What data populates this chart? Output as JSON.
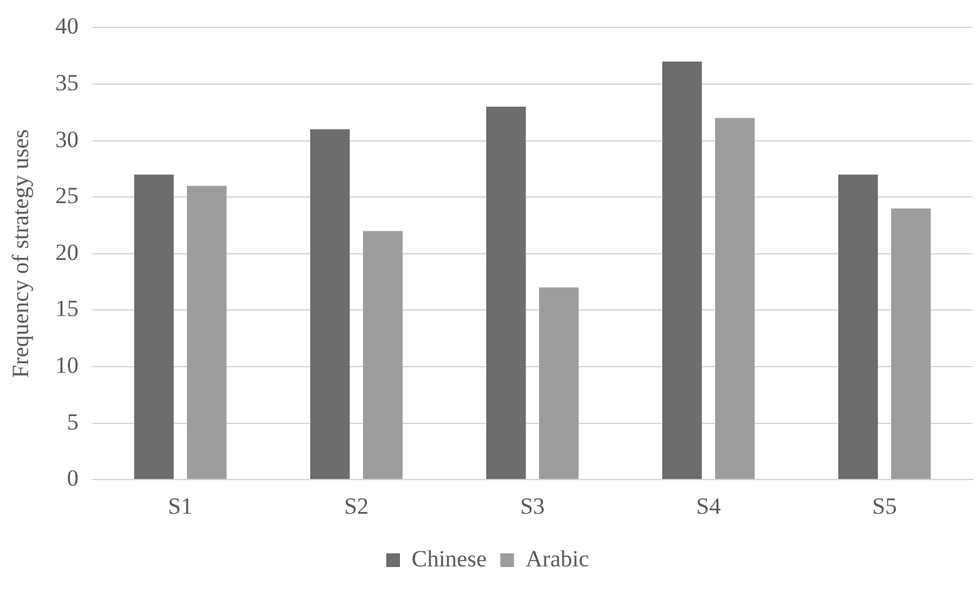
{
  "chart_data": {
    "type": "bar",
    "ylabel": "Frequency of strategy uses",
    "categories": [
      "S1",
      "S2",
      "S3",
      "S4",
      "S5"
    ],
    "series": [
      {
        "name": "Chinese",
        "color": "#6d6d6d",
        "values": [
          27,
          31,
          33,
          37,
          27
        ]
      },
      {
        "name": "Arabic",
        "color": "#9d9d9d",
        "values": [
          26,
          22,
          17,
          32,
          24
        ]
      }
    ],
    "ylim": [
      0,
      40
    ],
    "yticks": [
      0,
      5,
      10,
      15,
      20,
      25,
      30,
      35,
      40
    ],
    "grid": "y",
    "legend": "bottom"
  }
}
